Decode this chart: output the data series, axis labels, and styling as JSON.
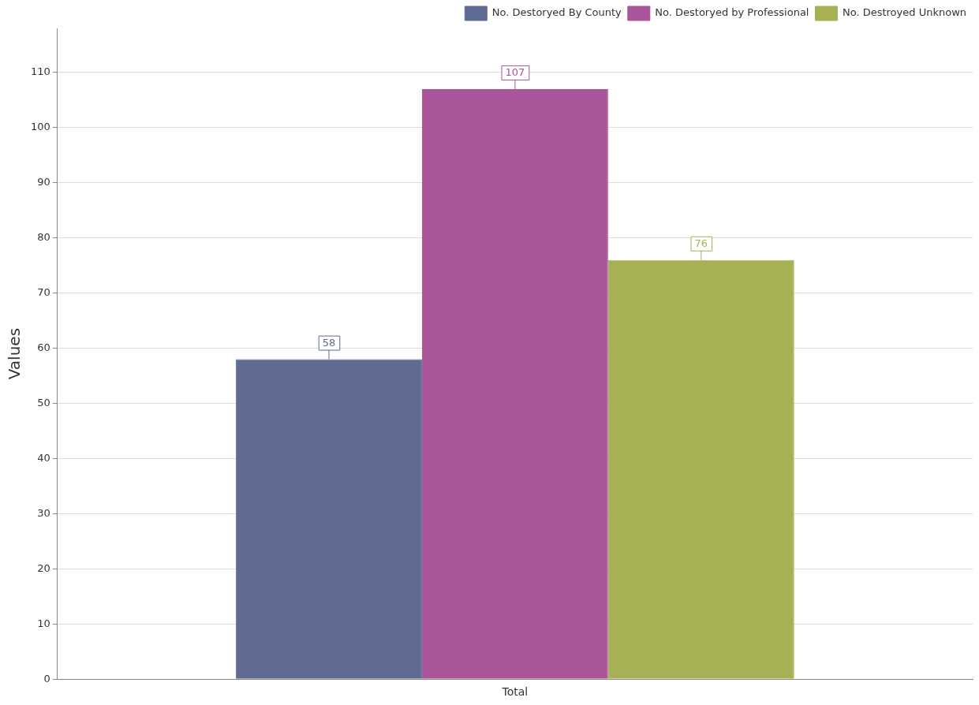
{
  "chart_data": {
    "type": "bar",
    "ylabel": "Values",
    "categories": [
      "Total"
    ],
    "series": [
      {
        "name": "No. Destoryed By County",
        "color": "#5f6b93",
        "values": [
          58
        ]
      },
      {
        "name": "No. Destoryed by Professional",
        "color": "#aa5599",
        "values": [
          107
        ]
      },
      {
        "name": "No. Destroyed Unknown",
        "color": "#a8b055",
        "values": [
          76
        ]
      }
    ],
    "ylim": [
      0,
      118
    ],
    "yticks": [
      0,
      10,
      20,
      30,
      40,
      50,
      60,
      70,
      80,
      90,
      100,
      110
    ],
    "grid": "y",
    "legend": "top right",
    "data_labels": true
  }
}
